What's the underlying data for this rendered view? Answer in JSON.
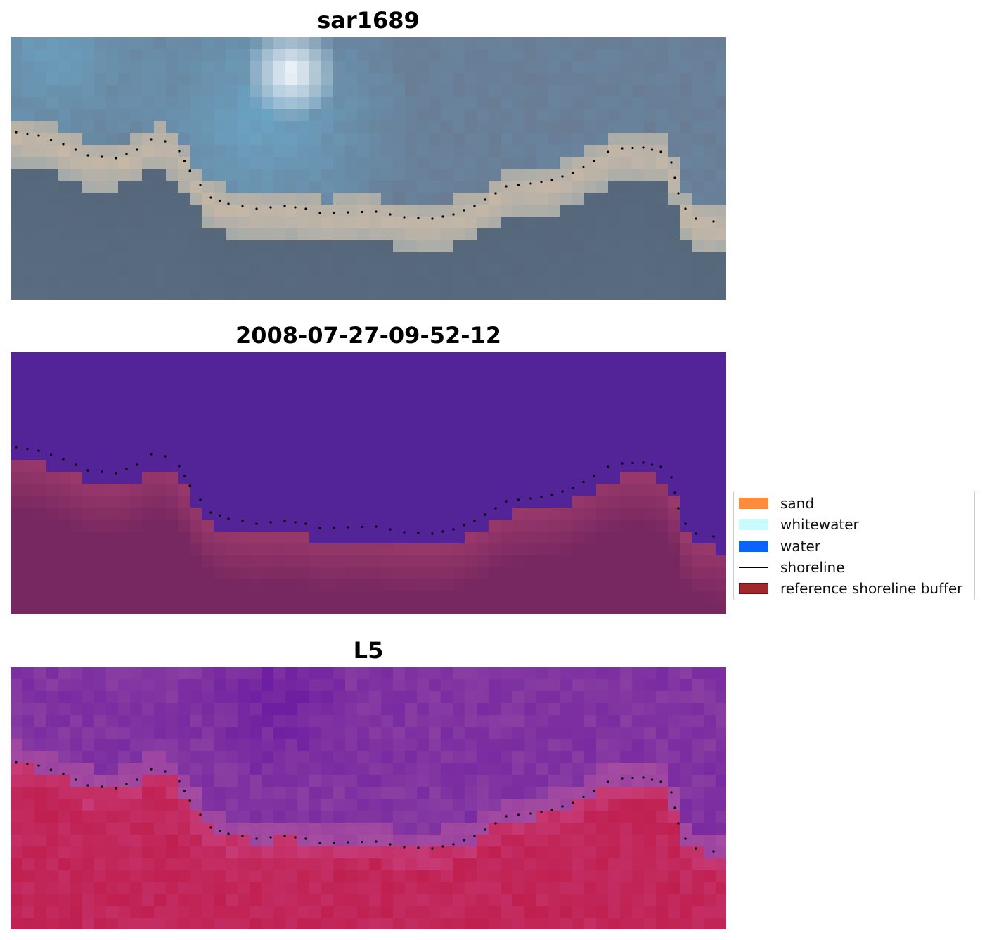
{
  "panels": [
    {
      "title": "sar1689",
      "kind": "rgb"
    },
    {
      "title": "2008-07-27-09-52-12",
      "kind": "classified"
    },
    {
      "title": "L5",
      "kind": "index"
    }
  ],
  "legend": {
    "items": [
      {
        "label": "sand",
        "kind": "patch",
        "color": "#ff8c3c"
      },
      {
        "label": "whitewater",
        "kind": "patch",
        "color": "#c8fcfc"
      },
      {
        "label": "water",
        "kind": "patch",
        "color": "#0a64fa"
      },
      {
        "label": "shoreline",
        "kind": "line",
        "color": "#000000"
      },
      {
        "label": "reference shoreline buffer",
        "kind": "patch",
        "color": "#a0282a",
        "edge": "#6e1212"
      }
    ]
  },
  "colors": {
    "rgb_sky": "#697c94",
    "rgb_water_blue": "#6aa6c6",
    "rgb_sand": "#c8b8a6",
    "rgb_land": "#55667a",
    "classified_water": "#532497",
    "classified_buffer": "#782860",
    "index_water": "#8a3ea2",
    "index_land": "#c02050"
  }
}
